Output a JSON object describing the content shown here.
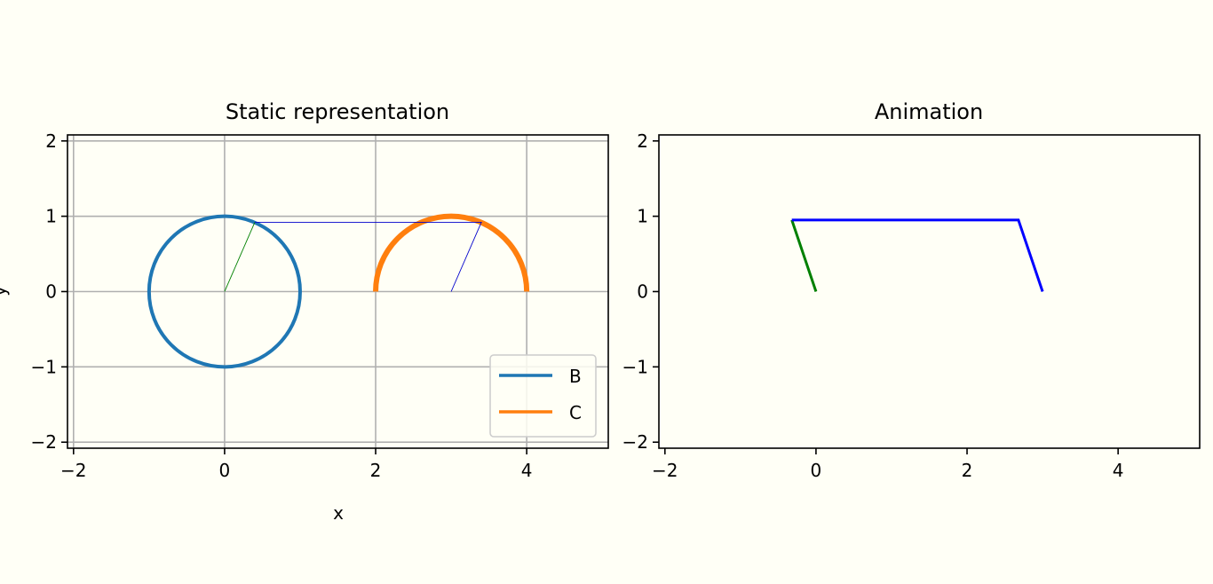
{
  "chart_data": [
    {
      "type": "line",
      "title": "Static representation",
      "xlabel": "x",
      "ylabel": "y",
      "xlim": [
        -2.08,
        5.08
      ],
      "ylim": [
        -2.08,
        2.08
      ],
      "xticks": [
        -2,
        0,
        2,
        4
      ],
      "yticks": [
        -2,
        -1,
        0,
        1,
        2
      ],
      "grid": true,
      "legend_position": "lower-right",
      "series": [
        {
          "name": "B",
          "kind": "circle",
          "center": [
            0,
            0
          ],
          "radius": 1,
          "color": "#1f77b4"
        },
        {
          "name": "C",
          "kind": "upper-semicircle",
          "center": [
            3,
            0
          ],
          "radius": 1,
          "color": "#ff7f0e"
        }
      ],
      "links": [
        {
          "color": "#008000",
          "points": [
            [
              0,
              0
            ],
            [
              0.4,
              0.92
            ]
          ]
        },
        {
          "color": "#0000cc",
          "points": [
            [
              0.4,
              0.92
            ],
            [
              3.4,
              0.92
            ],
            [
              3,
              0
            ]
          ]
        }
      ]
    },
    {
      "type": "line",
      "title": "Animation",
      "xlim": [
        -2.08,
        5.08
      ],
      "ylim": [
        -2.08,
        2.08
      ],
      "xticks": [
        -2,
        0,
        2,
        4
      ],
      "yticks": [
        -2,
        -1,
        0,
        1,
        2
      ],
      "grid": false,
      "links": [
        {
          "color": "#008000",
          "points": [
            [
              0,
              0
            ],
            [
              -0.32,
              0.95
            ]
          ]
        },
        {
          "color": "#0000ff",
          "points": [
            [
              -0.32,
              0.95
            ],
            [
              2.68,
              0.95
            ],
            [
              3,
              0
            ]
          ]
        }
      ]
    }
  ]
}
